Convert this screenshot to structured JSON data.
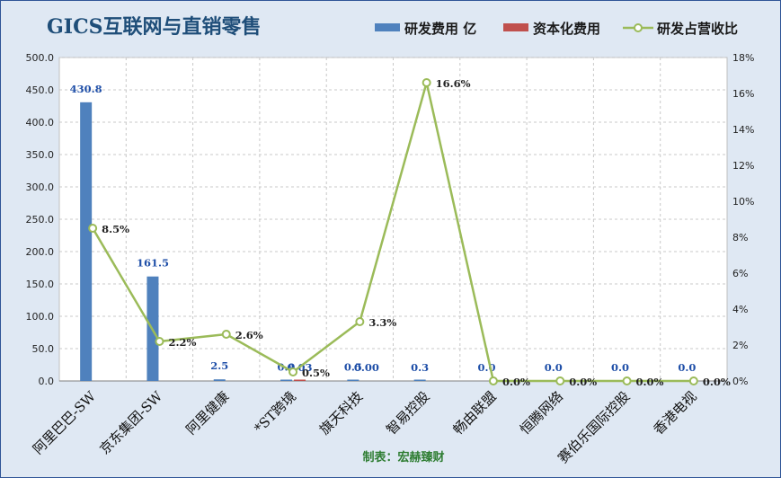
{
  "chart_data": {
    "type": "bar",
    "title": "GICS互联网与直销零售",
    "credit": "制表：宏赫臻财",
    "categories": [
      "阿里巴巴-SW",
      "京东集团-SW",
      "阿里健康",
      "*ST跨境",
      "旗天科技",
      "智易控股",
      "畅由联盟",
      "恒腾网络",
      "赛伯乐国际控股",
      "香港电视"
    ],
    "series": [
      {
        "name": "研发费用 亿",
        "type": "bar",
        "axis": "left",
        "color": "#4f81bd",
        "values": [
          430.8,
          161.5,
          2.5,
          0.9,
          0.5,
          0.3,
          0.0,
          0.0,
          0.0,
          0.0
        ],
        "labels": [
          "430.8",
          "161.5",
          "2.5",
          "0.9",
          "0.5",
          "0.3",
          "0.0",
          "0.0",
          "0.0",
          "0.0"
        ]
      },
      {
        "name": "资本化费用",
        "type": "bar",
        "axis": "left",
        "color": "#c0504d",
        "values": [
          0.0,
          0.0,
          0.0,
          0.03,
          0.0,
          0.0,
          0.0,
          0.0,
          0.0,
          0.0
        ],
        "labels": [
          "",
          "",
          "",
          "0.03",
          "0.00",
          "",
          "",
          "",
          "",
          ""
        ]
      },
      {
        "name": "研发占营收比",
        "type": "line",
        "axis": "right",
        "color": "#9bbb59",
        "values": [
          8.5,
          2.2,
          2.6,
          0.5,
          3.3,
          16.6,
          0.0,
          0.0,
          0.0,
          0.0
        ],
        "labels": [
          "8.5%",
          "2.2%",
          "2.6%",
          "0.5%",
          "3.3%",
          "16.6%",
          "0.0%",
          "0.0%",
          "0.0%",
          "0.0%"
        ]
      }
    ],
    "y_left": {
      "min": 0,
      "max": 500,
      "step": 50,
      "ticks": [
        "0.0",
        "50.0",
        "100.0",
        "150.0",
        "200.0",
        "250.0",
        "300.0",
        "350.0",
        "400.0",
        "450.0",
        "500.0"
      ]
    },
    "y_right": {
      "min": 0,
      "max": 18,
      "step": 2,
      "ticks": [
        "0%",
        "2%",
        "4%",
        "6%",
        "8%",
        "10%",
        "12%",
        "14%",
        "16%",
        "18%"
      ]
    },
    "grid": true,
    "legend_position": "top-right"
  }
}
